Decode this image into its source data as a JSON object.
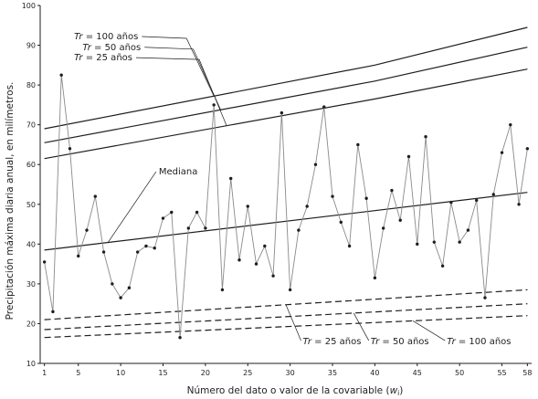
{
  "chart_data": {
    "type": "line",
    "title": "",
    "xlabel": "Número del dato o valor de la covariable (",
    "xlabel_var": "w",
    "xlabel_sub": "i",
    "xlabel_end": ")",
    "ylabel": "Precipitación máxima diaria anual, en milímetros.",
    "xlim": [
      0.5,
      58.5
    ],
    "ylim": [
      10,
      100
    ],
    "xticks": [
      "1",
      "5",
      "10",
      "15",
      "20",
      "25",
      "30",
      "35",
      "40",
      "45",
      "50",
      "55",
      "58"
    ],
    "yticks": [
      "10",
      "20",
      "30",
      "40",
      "50",
      "60",
      "70",
      "80",
      "90",
      "100"
    ],
    "grid": false,
    "series": [
      {
        "style": "points",
        "x": [
          1,
          2,
          3,
          4,
          5,
          6,
          7,
          8,
          9,
          10,
          11,
          12,
          13,
          14,
          15,
          16,
          17,
          18,
          19,
          20,
          21,
          22,
          23,
          24,
          25,
          26,
          27,
          28,
          29,
          30,
          31,
          32,
          33,
          34,
          35,
          36,
          37,
          38,
          39,
          40,
          41,
          42,
          43,
          44,
          45,
          46,
          47,
          48,
          49,
          50,
          51,
          52,
          53,
          54,
          55,
          56,
          57,
          58
        ],
        "values": [
          35.5,
          23,
          82.5,
          64,
          37,
          43.5,
          52,
          38,
          30,
          26.5,
          29,
          38,
          39.5,
          39,
          46.5,
          48,
          16.5,
          44,
          48,
          44,
          75,
          28.5,
          56.5,
          36,
          49.5,
          35,
          39.5,
          32,
          73,
          28.5,
          43.5,
          49.5,
          60,
          74.5,
          52,
          45.5,
          39.5,
          65,
          51.5,
          31.5,
          44,
          53.5,
          46,
          62,
          40,
          67,
          40.5,
          34.5,
          50.5,
          40.5,
          43.5,
          51,
          26.5,
          52.5,
          63,
          70,
          50,
          64
        ]
      },
      {
        "name": "Mediana",
        "style": "solid",
        "x": [
          1,
          58
        ],
        "values": [
          38.5,
          53
        ]
      },
      {
        "name": "Tr = 100 años",
        "style": "solid",
        "x": [
          1,
          40,
          58
        ],
        "values": [
          69,
          85,
          94.5
        ]
      },
      {
        "name": "Tr = 50 años",
        "style": "solid",
        "x": [
          1,
          40,
          58
        ],
        "values": [
          65.5,
          81,
          89.5
        ]
      },
      {
        "name": "Tr = 25 años",
        "style": "solid",
        "x": [
          1,
          40,
          58
        ],
        "values": [
          61.5,
          76.5,
          84
        ]
      },
      {
        "name": "Tr = 25 años",
        "style": "dashed",
        "x": [
          1,
          58
        ],
        "values": [
          21,
          28.5
        ]
      },
      {
        "name": "Tr = 50 años",
        "style": "dashed",
        "x": [
          1,
          58
        ],
        "values": [
          18.5,
          25
        ]
      },
      {
        "name": "Tr = 100 años",
        "style": "dashed",
        "x": [
          1,
          58
        ],
        "values": [
          16.5,
          22
        ]
      }
    ],
    "annotations": [
      {
        "var": "Tr",
        "text": " = 100 años",
        "x": 4.5,
        "y": 91.5,
        "points_to": 2
      },
      {
        "var": "Tr",
        "text": " = 50 años",
        "x": 5.5,
        "y": 88.8,
        "points_to": 3
      },
      {
        "var": "Tr",
        "text": " = 25 años",
        "x": 4.5,
        "y": 86.2,
        "points_to": 4
      },
      {
        "var": "",
        "text": "Mediana",
        "x": 14.5,
        "y": 57.5,
        "points_to": 1
      },
      {
        "var": "Tr",
        "text": " = 25 años",
        "x": 31.5,
        "y": 14.8,
        "points_to": 5
      },
      {
        "var": "Tr",
        "text": " = 50 años",
        "x": 39.5,
        "y": 14.8,
        "points_to": 6
      },
      {
        "var": "Tr",
        "text": " = 100 años",
        "x": 48.5,
        "y": 14.8,
        "points_to": 7
      }
    ],
    "colors": {
      "ink": "#1e1e1e",
      "data_line": "#8a8a8a",
      "background": "#ffffff"
    }
  }
}
